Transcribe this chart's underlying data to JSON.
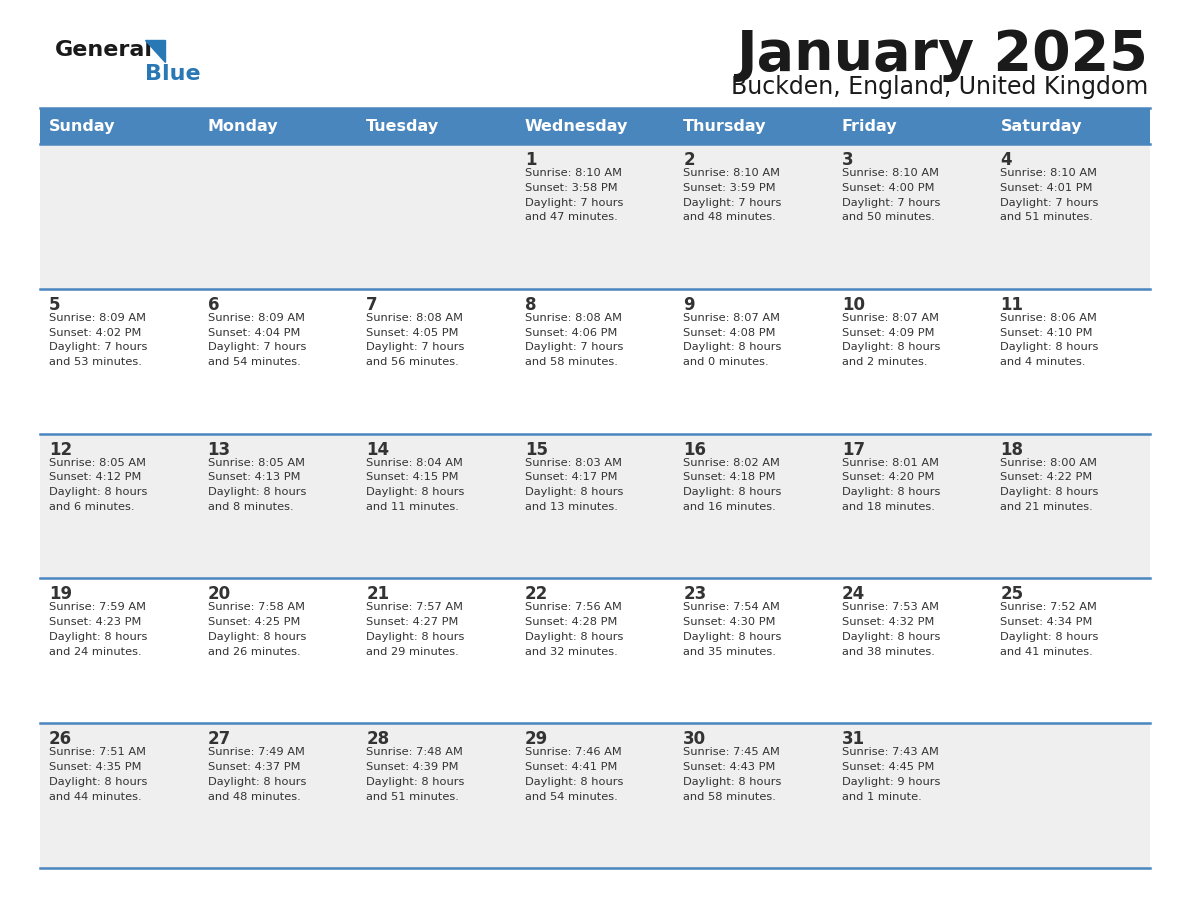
{
  "title": "January 2025",
  "subtitle": "Buckden, England, United Kingdom",
  "header_color": "#4a86be",
  "header_text_color": "#ffffff",
  "row_colors": [
    "#efefef",
    "#ffffff",
    "#efefef",
    "#ffffff",
    "#efefef"
  ],
  "day_headers": [
    "Sunday",
    "Monday",
    "Tuesday",
    "Wednesday",
    "Thursday",
    "Friday",
    "Saturday"
  ],
  "title_color": "#1a1a1a",
  "subtitle_color": "#1a1a1a",
  "grid_line_color": "#4a86be",
  "day_number_color": "#333333",
  "info_color": "#333333",
  "logo_general_color": "#1a1a1a",
  "logo_blue_color": "#2878b5",
  "logo_triangle_color": "#2878b5",
  "weeks": [
    [
      {
        "day": "",
        "info": ""
      },
      {
        "day": "",
        "info": ""
      },
      {
        "day": "",
        "info": ""
      },
      {
        "day": "1",
        "info": "Sunrise: 8:10 AM\nSunset: 3:58 PM\nDaylight: 7 hours\nand 47 minutes."
      },
      {
        "day": "2",
        "info": "Sunrise: 8:10 AM\nSunset: 3:59 PM\nDaylight: 7 hours\nand 48 minutes."
      },
      {
        "day": "3",
        "info": "Sunrise: 8:10 AM\nSunset: 4:00 PM\nDaylight: 7 hours\nand 50 minutes."
      },
      {
        "day": "4",
        "info": "Sunrise: 8:10 AM\nSunset: 4:01 PM\nDaylight: 7 hours\nand 51 minutes."
      }
    ],
    [
      {
        "day": "5",
        "info": "Sunrise: 8:09 AM\nSunset: 4:02 PM\nDaylight: 7 hours\nand 53 minutes."
      },
      {
        "day": "6",
        "info": "Sunrise: 8:09 AM\nSunset: 4:04 PM\nDaylight: 7 hours\nand 54 minutes."
      },
      {
        "day": "7",
        "info": "Sunrise: 8:08 AM\nSunset: 4:05 PM\nDaylight: 7 hours\nand 56 minutes."
      },
      {
        "day": "8",
        "info": "Sunrise: 8:08 AM\nSunset: 4:06 PM\nDaylight: 7 hours\nand 58 minutes."
      },
      {
        "day": "9",
        "info": "Sunrise: 8:07 AM\nSunset: 4:08 PM\nDaylight: 8 hours\nand 0 minutes."
      },
      {
        "day": "10",
        "info": "Sunrise: 8:07 AM\nSunset: 4:09 PM\nDaylight: 8 hours\nand 2 minutes."
      },
      {
        "day": "11",
        "info": "Sunrise: 8:06 AM\nSunset: 4:10 PM\nDaylight: 8 hours\nand 4 minutes."
      }
    ],
    [
      {
        "day": "12",
        "info": "Sunrise: 8:05 AM\nSunset: 4:12 PM\nDaylight: 8 hours\nand 6 minutes."
      },
      {
        "day": "13",
        "info": "Sunrise: 8:05 AM\nSunset: 4:13 PM\nDaylight: 8 hours\nand 8 minutes."
      },
      {
        "day": "14",
        "info": "Sunrise: 8:04 AM\nSunset: 4:15 PM\nDaylight: 8 hours\nand 11 minutes."
      },
      {
        "day": "15",
        "info": "Sunrise: 8:03 AM\nSunset: 4:17 PM\nDaylight: 8 hours\nand 13 minutes."
      },
      {
        "day": "16",
        "info": "Sunrise: 8:02 AM\nSunset: 4:18 PM\nDaylight: 8 hours\nand 16 minutes."
      },
      {
        "day": "17",
        "info": "Sunrise: 8:01 AM\nSunset: 4:20 PM\nDaylight: 8 hours\nand 18 minutes."
      },
      {
        "day": "18",
        "info": "Sunrise: 8:00 AM\nSunset: 4:22 PM\nDaylight: 8 hours\nand 21 minutes."
      }
    ],
    [
      {
        "day": "19",
        "info": "Sunrise: 7:59 AM\nSunset: 4:23 PM\nDaylight: 8 hours\nand 24 minutes."
      },
      {
        "day": "20",
        "info": "Sunrise: 7:58 AM\nSunset: 4:25 PM\nDaylight: 8 hours\nand 26 minutes."
      },
      {
        "day": "21",
        "info": "Sunrise: 7:57 AM\nSunset: 4:27 PM\nDaylight: 8 hours\nand 29 minutes."
      },
      {
        "day": "22",
        "info": "Sunrise: 7:56 AM\nSunset: 4:28 PM\nDaylight: 8 hours\nand 32 minutes."
      },
      {
        "day": "23",
        "info": "Sunrise: 7:54 AM\nSunset: 4:30 PM\nDaylight: 8 hours\nand 35 minutes."
      },
      {
        "day": "24",
        "info": "Sunrise: 7:53 AM\nSunset: 4:32 PM\nDaylight: 8 hours\nand 38 minutes."
      },
      {
        "day": "25",
        "info": "Sunrise: 7:52 AM\nSunset: 4:34 PM\nDaylight: 8 hours\nand 41 minutes."
      }
    ],
    [
      {
        "day": "26",
        "info": "Sunrise: 7:51 AM\nSunset: 4:35 PM\nDaylight: 8 hours\nand 44 minutes."
      },
      {
        "day": "27",
        "info": "Sunrise: 7:49 AM\nSunset: 4:37 PM\nDaylight: 8 hours\nand 48 minutes."
      },
      {
        "day": "28",
        "info": "Sunrise: 7:48 AM\nSunset: 4:39 PM\nDaylight: 8 hours\nand 51 minutes."
      },
      {
        "day": "29",
        "info": "Sunrise: 7:46 AM\nSunset: 4:41 PM\nDaylight: 8 hours\nand 54 minutes."
      },
      {
        "day": "30",
        "info": "Sunrise: 7:45 AM\nSunset: 4:43 PM\nDaylight: 8 hours\nand 58 minutes."
      },
      {
        "day": "31",
        "info": "Sunrise: 7:43 AM\nSunset: 4:45 PM\nDaylight: 9 hours\nand 1 minute."
      },
      {
        "day": "",
        "info": ""
      }
    ]
  ]
}
